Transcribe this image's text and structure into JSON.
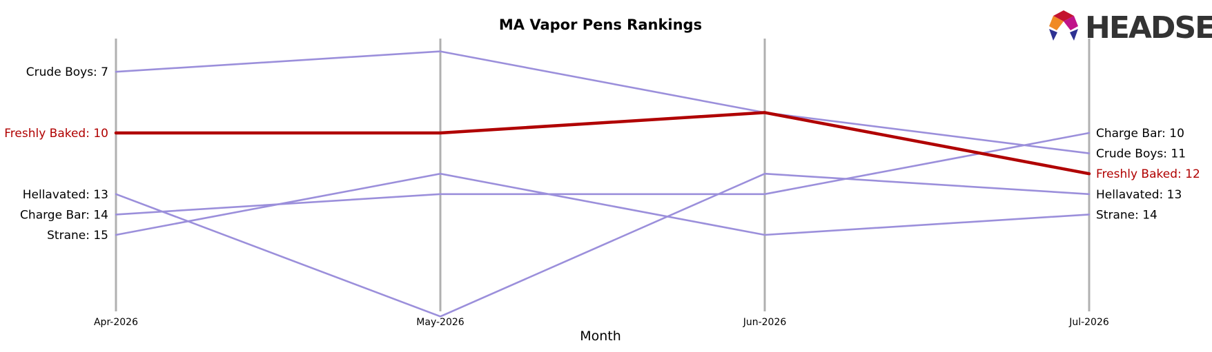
{
  "chart_data": {
    "type": "line",
    "title": "MA Vapor Pens Rankings",
    "xlabel": "Month",
    "ylabel": "",
    "categories": [
      "Apr-2026",
      "May-2026",
      "Jun-2026",
      "Jul-2026"
    ],
    "y_inverted": true,
    "ylim": [
      21,
      6
    ],
    "grid": false,
    "highlight_series": "Freshly Baked",
    "colors": {
      "highlight": "#b00000",
      "other": "#9b8fdb",
      "month_line": "#b0b0b0"
    },
    "series": [
      {
        "name": "Crude Boys",
        "values": [
          7,
          6,
          9,
          11
        ],
        "start_label": "Crude Boys: 7",
        "end_label": "Crude Boys: 11"
      },
      {
        "name": "Freshly Baked",
        "values": [
          10,
          10,
          9,
          12
        ],
        "start_label": "Freshly Baked: 10",
        "end_label": "Freshly Baked: 12"
      },
      {
        "name": "Hellavated",
        "values": [
          13,
          19,
          12,
          13
        ],
        "start_label": "Hellavated: 13",
        "end_label": "Hellavated: 13"
      },
      {
        "name": "Charge Bar",
        "values": [
          14,
          13,
          13,
          10
        ],
        "start_label": "Charge Bar: 14",
        "end_label": "Charge Bar: 10"
      },
      {
        "name": "Strane",
        "values": [
          15,
          12,
          15,
          14
        ],
        "start_label": "Strane: 15",
        "end_label": "Strane: 14"
      }
    ]
  },
  "logo": {
    "text": "HEADSET",
    "icon": "headset-logo-icon"
  }
}
